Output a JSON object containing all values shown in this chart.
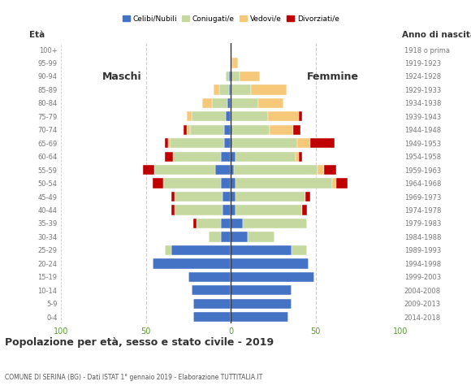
{
  "age_groups": [
    "0-4",
    "5-9",
    "10-14",
    "15-19",
    "20-24",
    "25-29",
    "30-34",
    "35-39",
    "40-44",
    "45-49",
    "50-54",
    "55-59",
    "60-64",
    "65-69",
    "70-74",
    "75-79",
    "80-84",
    "85-89",
    "90-94",
    "95-99",
    "100+"
  ],
  "birth_years": [
    "2014-2018",
    "2009-2013",
    "2004-2008",
    "1999-2003",
    "1994-1998",
    "1989-1993",
    "1984-1988",
    "1979-1983",
    "1974-1978",
    "1969-1973",
    "1964-1968",
    "1959-1963",
    "1954-1958",
    "1949-1953",
    "1944-1948",
    "1939-1943",
    "1934-1938",
    "1929-1933",
    "1924-1928",
    "1919-1923",
    "1918 o prima"
  ],
  "males": {
    "celibe": [
      22,
      22,
      23,
      25,
      46,
      35,
      6,
      6,
      5,
      5,
      6,
      9,
      6,
      4,
      4,
      3,
      2,
      1,
      1,
      0,
      0
    ],
    "coniugato": [
      0,
      0,
      0,
      0,
      0,
      4,
      7,
      14,
      28,
      28,
      34,
      36,
      28,
      32,
      20,
      20,
      9,
      6,
      2,
      0,
      0
    ],
    "vedovo": [
      0,
      0,
      0,
      0,
      0,
      0,
      0,
      0,
      0,
      0,
      0,
      0,
      0,
      1,
      2,
      3,
      6,
      3,
      0,
      0,
      0
    ],
    "divorziato": [
      0,
      0,
      0,
      0,
      0,
      0,
      0,
      2,
      2,
      2,
      6,
      7,
      5,
      2,
      2,
      0,
      0,
      0,
      0,
      0,
      0
    ]
  },
  "females": {
    "celibe": [
      34,
      36,
      36,
      49,
      46,
      36,
      10,
      7,
      3,
      3,
      3,
      2,
      3,
      1,
      1,
      0,
      0,
      0,
      1,
      0,
      0
    ],
    "coniugato": [
      0,
      0,
      0,
      0,
      0,
      9,
      16,
      38,
      39,
      41,
      57,
      49,
      35,
      38,
      22,
      22,
      16,
      12,
      4,
      1,
      0
    ],
    "vedovo": [
      0,
      0,
      0,
      0,
      0,
      0,
      0,
      0,
      0,
      0,
      2,
      4,
      2,
      8,
      14,
      18,
      15,
      21,
      12,
      3,
      0
    ],
    "divorziato": [
      0,
      0,
      0,
      0,
      0,
      0,
      0,
      0,
      3,
      3,
      7,
      7,
      2,
      14,
      4,
      2,
      0,
      0,
      0,
      0,
      0
    ]
  },
  "colors": {
    "celibe": "#4472c4",
    "coniugato": "#c5d8a0",
    "vedovo": "#f5c87a",
    "divorziato": "#c00000"
  },
  "legend_labels": [
    "Celibi/Nubili",
    "Coniugati/e",
    "Vedovi/e",
    "Divorziati/e"
  ],
  "title": "Popolazione per età, sesso e stato civile - 2019",
  "subtitle": "COMUNE DI SERINA (BG) - Dati ISTAT 1° gennaio 2019 - Elaborazione TUTTITALIA.IT",
  "xlabel_left": "Età",
  "xlabel_right": "Anno di nascita",
  "label_maschi": "Maschi",
  "label_femmine": "Femmine",
  "xlim": 100,
  "bg_color": "#ffffff",
  "grid_color": "#cccccc",
  "axis_label_color": "#5a9a32",
  "tick_color": "#777777"
}
